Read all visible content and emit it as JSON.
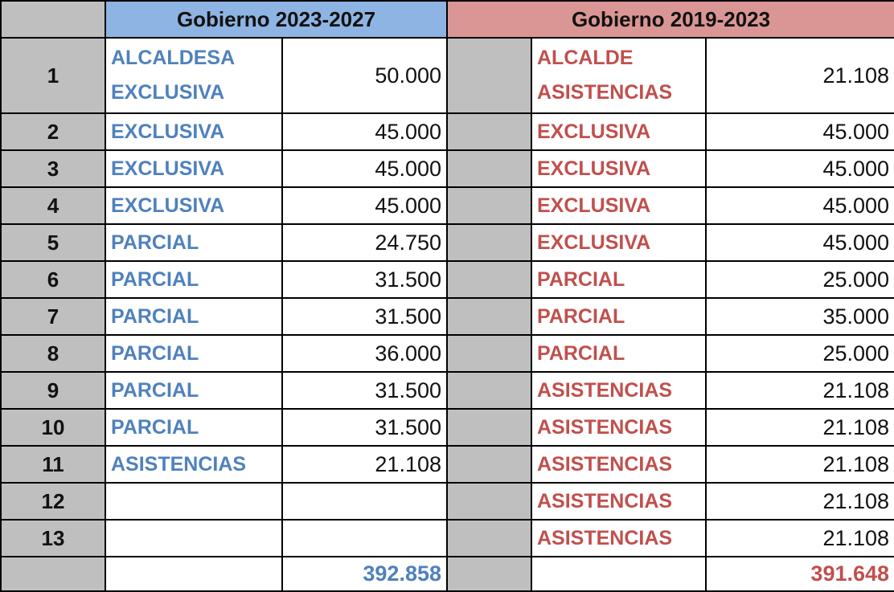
{
  "header": {
    "left_title": "Gobierno 2023-2027",
    "right_title": "Gobierno 2019-2023"
  },
  "rows": [
    {
      "number": 1,
      "left_label": "ALCALDESA EXCLUSIVA",
      "left_value": "50.000",
      "right_label": "ALCALDE ASISTENCIAS",
      "right_value": "21.108"
    },
    {
      "number": 2,
      "left_label": "EXCLUSIVA",
      "left_value": "45.000",
      "right_label": "EXCLUSIVA",
      "right_value": "45.000"
    },
    {
      "number": 3,
      "left_label": "EXCLUSIVA",
      "left_value": "45.000",
      "right_label": "EXCLUSIVA",
      "right_value": "45.000"
    },
    {
      "number": 4,
      "left_label": "EXCLUSIVA",
      "left_value": "45.000",
      "right_label": "EXCLUSIVA",
      "right_value": "45.000"
    },
    {
      "number": 5,
      "left_label": "PARCIAL",
      "left_value": "24.750",
      "right_label": "EXCLUSIVA",
      "right_value": "45.000"
    },
    {
      "number": 6,
      "left_label": "PARCIAL",
      "left_value": "31.500",
      "right_label": "PARCIAL",
      "right_value": "25.000"
    },
    {
      "number": 7,
      "left_label": "PARCIAL",
      "left_value": "31.500",
      "right_label": "PARCIAL",
      "right_value": "35.000"
    },
    {
      "number": 8,
      "left_label": "PARCIAL",
      "left_value": "36.000",
      "right_label": "PARCIAL",
      "right_value": "25.000"
    },
    {
      "number": 9,
      "left_label": "PARCIAL",
      "left_value": "31.500",
      "right_label": "ASISTENCIAS",
      "right_value": "21.108"
    },
    {
      "number": 10,
      "left_label": "PARCIAL",
      "left_value": "31.500",
      "right_label": "ASISTENCIAS",
      "right_value": "21.108"
    },
    {
      "number": 11,
      "left_label": "ASISTENCIAS",
      "left_value": "21.108",
      "right_label": "ASISTENCIAS",
      "right_value": "21.108"
    },
    {
      "number": 12,
      "right_label": "ASISTENCIAS",
      "right_value": "21.108"
    },
    {
      "number": 13,
      "right_label": "ASISTENCIAS",
      "right_value": "21.108"
    }
  ],
  "totals": {
    "left": "392.858",
    "right": "391.648"
  }
}
